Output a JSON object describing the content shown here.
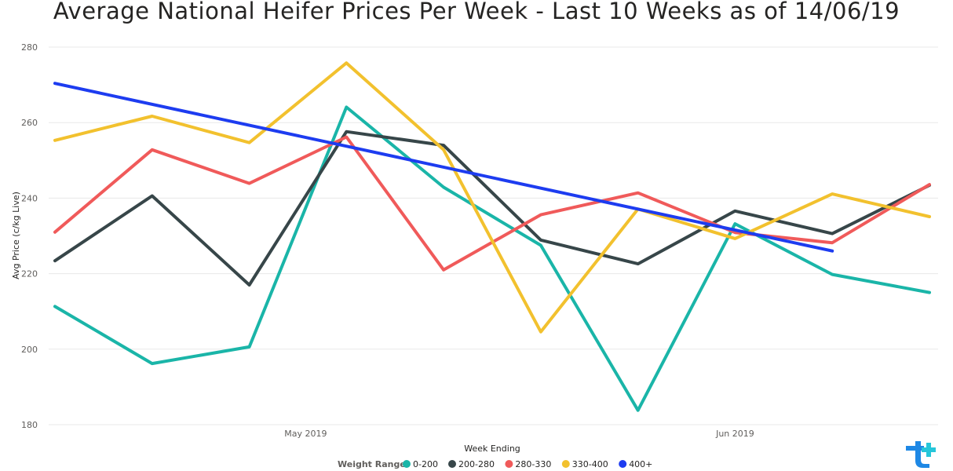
{
  "chart_data": {
    "type": "line",
    "title": "Average National Heifer Prices Per Week - Last 10 Weeks as of 14/06/19",
    "xlabel": "Week Ending",
    "ylabel": "Avg Price (c/kg Live)",
    "x_tick_labels": [
      "May 2019",
      "Jun 2019"
    ],
    "ylim": [
      180,
      280
    ],
    "y_ticks": [
      180,
      200,
      220,
      240,
      260,
      280
    ],
    "grid": true,
    "legend_title": "Weight Range",
    "legend_position": "bottom",
    "series": [
      {
        "name": "0-200",
        "color": "#1ab5a8",
        "values": [
          211.3,
          196.2,
          200.6,
          264.1,
          242.9,
          227.5,
          183.8,
          233.2,
          219.8,
          215.0
        ]
      },
      {
        "name": "200-280",
        "color": "#374649",
        "values": [
          223.4,
          240.6,
          217.0,
          257.6,
          254.0,
          228.9,
          222.6,
          236.6,
          230.6,
          243.4
        ]
      },
      {
        "name": "280-330",
        "color": "#f05a5a",
        "values": [
          231.0,
          252.8,
          243.9,
          256.2,
          221.0,
          235.6,
          241.4,
          230.9,
          228.2,
          243.6
        ]
      },
      {
        "name": "330-400",
        "color": "#f2c12e",
        "values": [
          255.3,
          261.7,
          254.7,
          275.8,
          252.8,
          204.6,
          237.1,
          229.3,
          241.1,
          235.1
        ]
      },
      {
        "name": "400+",
        "color": "#1d3cf0",
        "values": [
          270.4,
          null,
          null,
          null,
          null,
          null,
          null,
          null,
          226.0,
          null
        ]
      }
    ]
  }
}
